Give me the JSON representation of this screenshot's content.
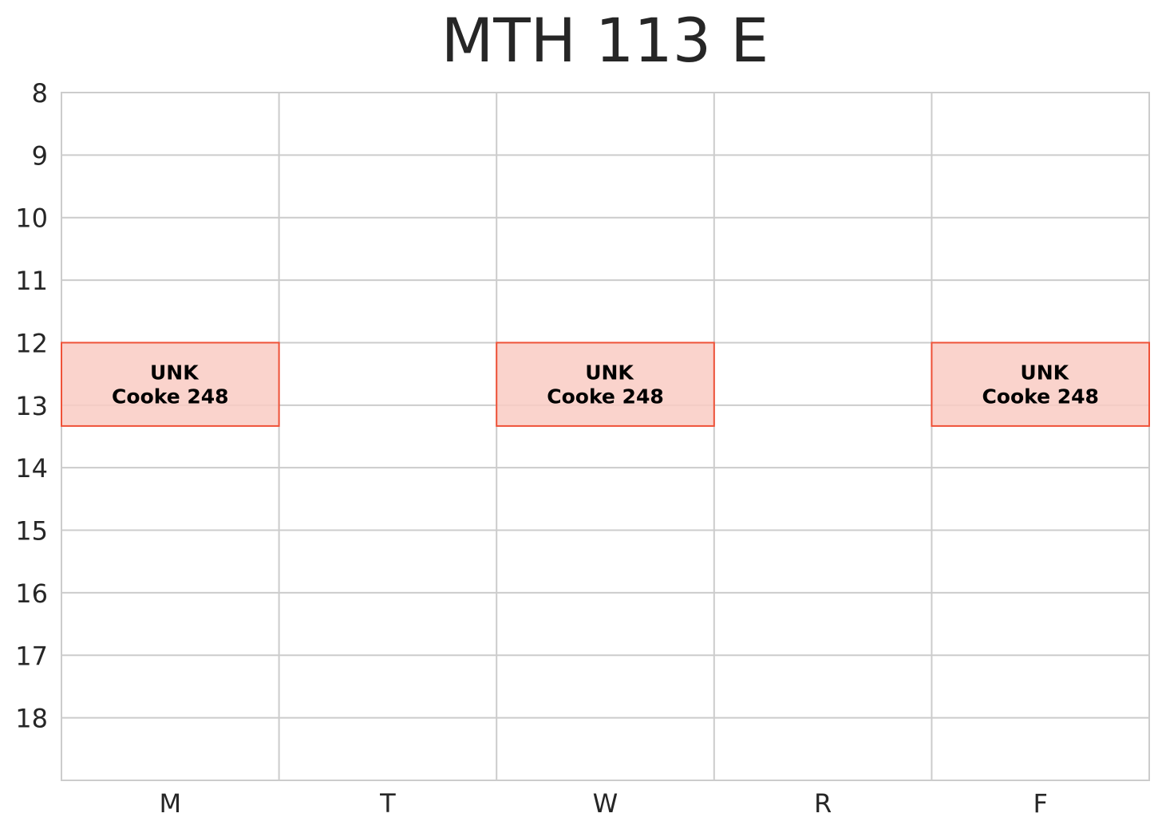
{
  "chart_data": {
    "type": "schedule",
    "title": "MTH 113 E",
    "categories": [
      "M",
      "T",
      "W",
      "R",
      "F"
    ],
    "ylim": [
      8,
      19
    ],
    "yticks": [
      8,
      9,
      10,
      11,
      12,
      13,
      14,
      15,
      16,
      17,
      18
    ],
    "y_inverted": true,
    "grid": true,
    "colors": {
      "fill": "#f9cbc3",
      "edge": "#ef5238",
      "grid": "#cccccc",
      "text": "#262626"
    },
    "events": [
      {
        "day": "M",
        "start": 12,
        "end": 13.333,
        "line1": "UNK",
        "line2": "Cooke 248"
      },
      {
        "day": "W",
        "start": 12,
        "end": 13.333,
        "line1": "UNK",
        "line2": "Cooke 248"
      },
      {
        "day": "F",
        "start": 12,
        "end": 13.333,
        "line1": "UNK",
        "line2": "Cooke 248"
      }
    ]
  }
}
